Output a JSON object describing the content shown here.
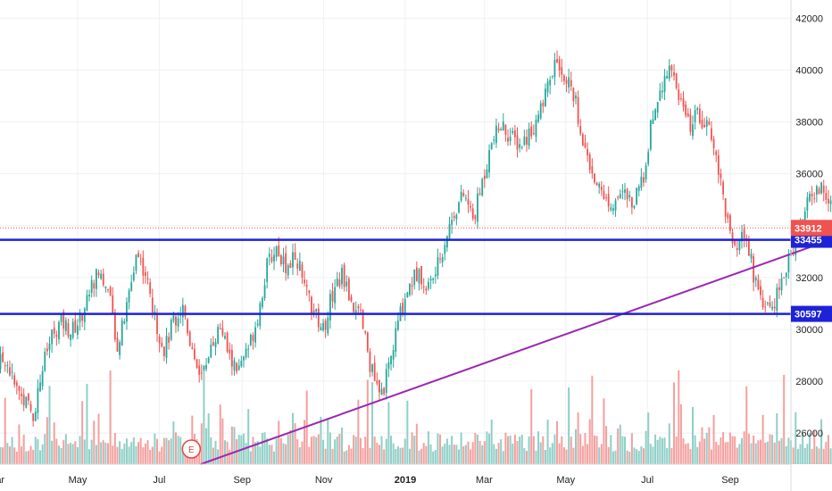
{
  "chart_data": {
    "type": "candlestick",
    "instrument_type": "daily price chart with volume",
    "y_range": [
      24800,
      42700
    ],
    "y_ticks": [
      "26000",
      "28000",
      "30000",
      "32000",
      "34000",
      "36000",
      "38000",
      "40000",
      "42000"
    ],
    "x_ticks": [
      {
        "label": "Mar",
        "date": "2018-03-01",
        "bold": false
      },
      {
        "label": "May",
        "date": "2018-05-01",
        "bold": false
      },
      {
        "label": "Jul",
        "date": "2018-07-01",
        "bold": false
      },
      {
        "label": "Sep",
        "date": "2018-09-01",
        "bold": false
      },
      {
        "label": "Nov",
        "date": "2018-11-01",
        "bold": false
      },
      {
        "label": "2019",
        "date": "2019-01-01",
        "bold": true
      },
      {
        "label": "Mar",
        "date": "2019-03-01",
        "bold": false
      },
      {
        "label": "May",
        "date": "2019-05-01",
        "bold": false
      },
      {
        "label": "Jul",
        "date": "2019-07-01",
        "bold": false
      },
      {
        "label": "Sep",
        "date": "2019-09-01",
        "bold": false
      }
    ],
    "close_series": [
      [
        "2018-02-20",
        29400
      ],
      [
        "2018-03-01",
        28600
      ],
      [
        "2018-03-08",
        28900
      ],
      [
        "2018-03-15",
        27800
      ],
      [
        "2018-03-22",
        27300
      ],
      [
        "2018-03-29",
        26700
      ],
      [
        "2018-04-05",
        28600
      ],
      [
        "2018-04-12",
        29800
      ],
      [
        "2018-04-19",
        30300
      ],
      [
        "2018-04-26",
        29900
      ],
      [
        "2018-05-03",
        30400
      ],
      [
        "2018-05-10",
        31500
      ],
      [
        "2018-05-17",
        32300
      ],
      [
        "2018-05-24",
        31400
      ],
      [
        "2018-05-31",
        29300
      ],
      [
        "2018-06-07",
        30900
      ],
      [
        "2018-06-14",
        33000
      ],
      [
        "2018-06-21",
        32100
      ],
      [
        "2018-06-28",
        30300
      ],
      [
        "2018-07-05",
        29200
      ],
      [
        "2018-07-12",
        30400
      ],
      [
        "2018-07-19",
        30900
      ],
      [
        "2018-07-26",
        29100
      ],
      [
        "2018-08-02",
        28200
      ],
      [
        "2018-08-09",
        29500
      ],
      [
        "2018-08-16",
        30100
      ],
      [
        "2018-08-23",
        28800
      ],
      [
        "2018-08-30",
        28400
      ],
      [
        "2018-09-06",
        29300
      ],
      [
        "2018-09-13",
        30600
      ],
      [
        "2018-09-20",
        32500
      ],
      [
        "2018-09-27",
        33200
      ],
      [
        "2018-10-04",
        32400
      ],
      [
        "2018-10-11",
        32900
      ],
      [
        "2018-10-18",
        31600
      ],
      [
        "2018-10-25",
        30600
      ],
      [
        "2018-11-01",
        30000
      ],
      [
        "2018-11-08",
        31500
      ],
      [
        "2018-11-15",
        32100
      ],
      [
        "2018-11-22",
        31000
      ],
      [
        "2018-11-29",
        30400
      ],
      [
        "2018-12-06",
        28600
      ],
      [
        "2018-12-13",
        27300
      ],
      [
        "2018-12-20",
        28500
      ],
      [
        "2018-12-27",
        30400
      ],
      [
        "2019-01-03",
        31600
      ],
      [
        "2019-01-10",
        32200
      ],
      [
        "2019-01-17",
        31600
      ],
      [
        "2019-01-24",
        32200
      ],
      [
        "2019-01-31",
        33500
      ],
      [
        "2019-02-07",
        34600
      ],
      [
        "2019-02-14",
        35200
      ],
      [
        "2019-02-21",
        34200
      ],
      [
        "2019-02-28",
        35800
      ],
      [
        "2019-03-07",
        37200
      ],
      [
        "2019-03-14",
        37900
      ],
      [
        "2019-03-21",
        37400
      ],
      [
        "2019-03-28",
        37100
      ],
      [
        "2019-04-04",
        37600
      ],
      [
        "2019-04-11",
        38200
      ],
      [
        "2019-04-18",
        39400
      ],
      [
        "2019-04-25",
        40400
      ],
      [
        "2019-05-02",
        39600
      ],
      [
        "2019-05-09",
        38600
      ],
      [
        "2019-05-16",
        36800
      ],
      [
        "2019-05-23",
        35800
      ],
      [
        "2019-05-30",
        35100
      ],
      [
        "2019-06-06",
        34900
      ],
      [
        "2019-06-13",
        35300
      ],
      [
        "2019-06-20",
        34800
      ],
      [
        "2019-06-27",
        35600
      ],
      [
        "2019-07-04",
        37900
      ],
      [
        "2019-07-11",
        39400
      ],
      [
        "2019-07-18",
        40200
      ],
      [
        "2019-07-25",
        39000
      ],
      [
        "2019-08-01",
        37800
      ],
      [
        "2019-08-08",
        38300
      ],
      [
        "2019-08-15",
        37800
      ],
      [
        "2019-08-22",
        36600
      ],
      [
        "2019-08-29",
        34400
      ],
      [
        "2019-09-05",
        32800
      ],
      [
        "2019-09-12",
        33700
      ],
      [
        "2019-09-19",
        32000
      ],
      [
        "2019-09-26",
        31100
      ],
      [
        "2019-10-03",
        30900
      ],
      [
        "2019-10-10",
        31800
      ],
      [
        "2019-10-17",
        33000
      ],
      [
        "2019-10-24",
        34200
      ],
      [
        "2019-10-31",
        35100
      ],
      [
        "2019-11-07",
        35500
      ],
      [
        "2019-11-14",
        34800
      ],
      [
        "2019-11-21",
        34100
      ],
      [
        "2019-11-28",
        33912
      ]
    ],
    "horizontal_lines": [
      {
        "value": 33455,
        "label": "33455",
        "color": "#1e22d6"
      },
      {
        "value": 30597,
        "label": "30597",
        "color": "#1e22d6"
      }
    ],
    "current_price": {
      "value": 33912,
      "label": "33912",
      "color": "#ef5350"
    },
    "trendline": {
      "from": [
        "2018-08-01",
        24800
      ],
      "to": [
        "2019-12-10",
        33910
      ],
      "color": "#9c27b0"
    },
    "event_marker": {
      "label": "E",
      "date": "2018-07-25"
    },
    "volume": "daily volume histogram along bottom",
    "colors": {
      "up": "#26a69a",
      "down": "#ef5350",
      "volume_up": "#8fcfc7",
      "volume_down": "#f4a09e",
      "grid": "#eef0f3"
    },
    "grid": true,
    "legend": "none"
  }
}
